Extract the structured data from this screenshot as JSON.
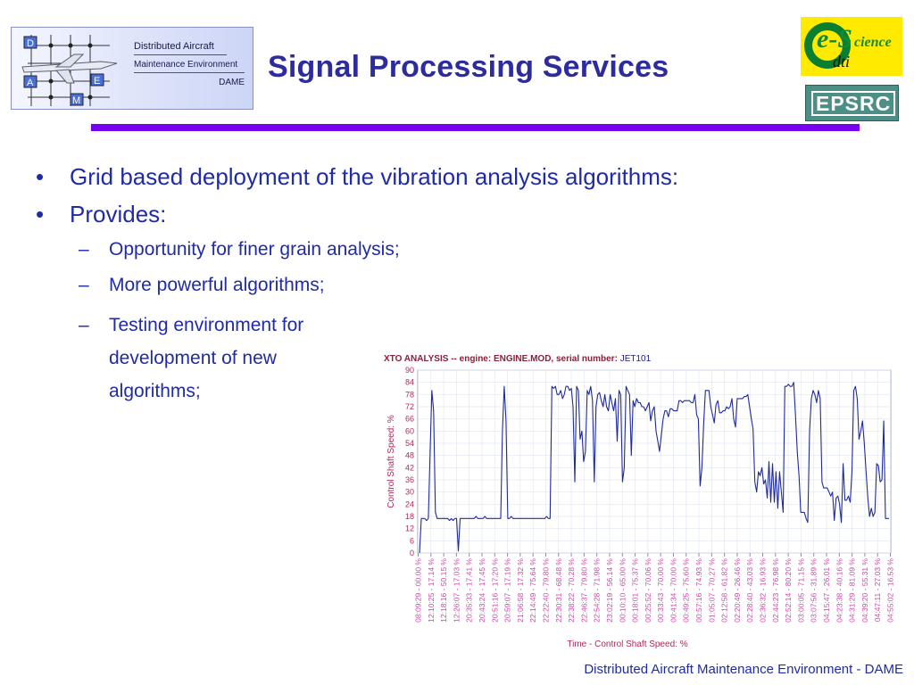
{
  "header": {
    "title": "Signal Processing Services",
    "logo": {
      "line1": "Distributed Aircraft",
      "line2": "Maintenance Environment",
      "line3": "DAME",
      "nodes": [
        "D",
        "A",
        "E",
        "M"
      ]
    },
    "escience_logo": {
      "e": "e-S",
      "cience": "cience",
      "dti": "dti"
    },
    "epsrc_logo": "EPSRC"
  },
  "body": {
    "bullets": [
      {
        "text": "Grid based deployment of the vibration analysis algorithms:",
        "sub": []
      },
      {
        "text": "Provides:",
        "sub": [
          "Opportunity for finer grain analysis;",
          "More powerful algorithms;",
          "Testing environment for development of new algorithms;"
        ]
      }
    ]
  },
  "chart_data": {
    "type": "line",
    "title": "XTO ANALYSIS -- engine: ENGINE.MOD, serial number: JET101",
    "title_prefix": "XTO ANALYSIS -- engine: ENGINE.MOD, serial number:",
    "serial": "JET101",
    "xlabel": "Time - Control Shaft Speed: %",
    "ylabel": "Control Shaft Speed: %",
    "ylim": [
      0,
      90
    ],
    "yticks": [
      0,
      6,
      12,
      18,
      24,
      30,
      36,
      42,
      48,
      54,
      60,
      66,
      72,
      78,
      84,
      90
    ],
    "xticks": [
      "08:09:29 - 00.00 %",
      "12:10:25 - 17.14 %",
      "12:18:16 - 50.15 %",
      "12:26:07 - 17.03 %",
      "20:35:33 - 17.41 %",
      "20:43:24 - 17.45 %",
      "20:51:16 - 17.20 %",
      "20:59:07 - 17.19 %",
      "21:06:58 - 17.32 %",
      "22:14:49 - 75.64 %",
      "22:22:40 - 79.80 %",
      "22:30:31 - 68.48 %",
      "22:38:22 - 70.28 %",
      "22:46:37 - 79.80 %",
      "22:54:28 - 71.98 %",
      "23:02:19 - 56.14 %",
      "00:10:10 - 65.00 %",
      "00:18:01 - 75.37 %",
      "00:25:52 - 70.06 %",
      "00:33:43 - 70.00 %",
      "00:41:34 - 70.00 %",
      "00:49:25 - 75.60 %",
      "00:57:16 - 74.93 %",
      "01:05:07 - 70.27 %",
      "02:12:58 - 61.82 %",
      "02:20:49 - 26.46 %",
      "02:28:40 - 43.03 %",
      "02:36:32 - 16.93 %",
      "02:44:23 - 76.98 %",
      "02:52:14 - 80.20 %",
      "03:00:05 - 71.15 %",
      "03:07:56 - 31.89 %",
      "04:15:47 - 26.01 %",
      "04:23:38 - 40.16 %",
      "04:31:29 - 81.09 %",
      "04:39:20 - 55.31 %",
      "04:47:11 - 27.03 %",
      "04:55:02 - 16.53 %"
    ],
    "series": [
      {
        "values": [
          0,
          17,
          17,
          17,
          16,
          17,
          50,
          80,
          70,
          20,
          17,
          17,
          17,
          17,
          17,
          17,
          17,
          16,
          17,
          16,
          17,
          17,
          1,
          17,
          17,
          17,
          17,
          17,
          17,
          17,
          17,
          17,
          18,
          17,
          17,
          17,
          17,
          18,
          17,
          17,
          17,
          17,
          17,
          17,
          17,
          17,
          17,
          60,
          82,
          65,
          17,
          17,
          18,
          17,
          17,
          17,
          17,
          17,
          17,
          17,
          17,
          17,
          17,
          17,
          17,
          17,
          17,
          17,
          17,
          17,
          17,
          17,
          18,
          17,
          17,
          82,
          81,
          82,
          78,
          78,
          80,
          76,
          78,
          82,
          82,
          80,
          81,
          72,
          35,
          82,
          80,
          56,
          60,
          45,
          50,
          80,
          78,
          82,
          75,
          35,
          72,
          78,
          79,
          75,
          72,
          78,
          72,
          70,
          78,
          74,
          70,
          76,
          55,
          80,
          78,
          35,
          42,
          82,
          80,
          78,
          48,
          75,
          72,
          76,
          74,
          74,
          72,
          72,
          70,
          72,
          74,
          65,
          70,
          72,
          60,
          55,
          50,
          58,
          66,
          70,
          70,
          67,
          71,
          71,
          70,
          70,
          70,
          75,
          75,
          74,
          75,
          75,
          75,
          75,
          74,
          74,
          78,
          68,
          66,
          33,
          42,
          64,
          80,
          80,
          80,
          72,
          68,
          64,
          73,
          75,
          69,
          69,
          70,
          70,
          72,
          71,
          72,
          76,
          66,
          62,
          76,
          76,
          76,
          76,
          77,
          77,
          78,
          72,
          66,
          61,
          35,
          30,
          40,
          38,
          42,
          34,
          36,
          27,
          45,
          25,
          44,
          25,
          40,
          22,
          40,
          30,
          20,
          82,
          82,
          83,
          82,
          82,
          84,
          68,
          50,
          38,
          20,
          20,
          20,
          17,
          15,
          60,
          76,
          80,
          78,
          74,
          80,
          76,
          35,
          32,
          32,
          32,
          30,
          28,
          30,
          16,
          27,
          28,
          24,
          15,
          44,
          26,
          26,
          28,
          25,
          40,
          80,
          82,
          76,
          56,
          60,
          65,
          54,
          40,
          27,
          18,
          22,
          18,
          20,
          44,
          43,
          35,
          36,
          65,
          17,
          17,
          17
        ]
      }
    ]
  },
  "footer": {
    "text": "Distributed Aircraft Maintenance Environment - DAME"
  },
  "colors": {
    "title": "#2c2c9e",
    "bullets": "#1f2ba8",
    "rule": "#7700ee",
    "series": "#1f2a9e",
    "axis_label": "#b0285c",
    "tick_label": "#c94aa6"
  }
}
